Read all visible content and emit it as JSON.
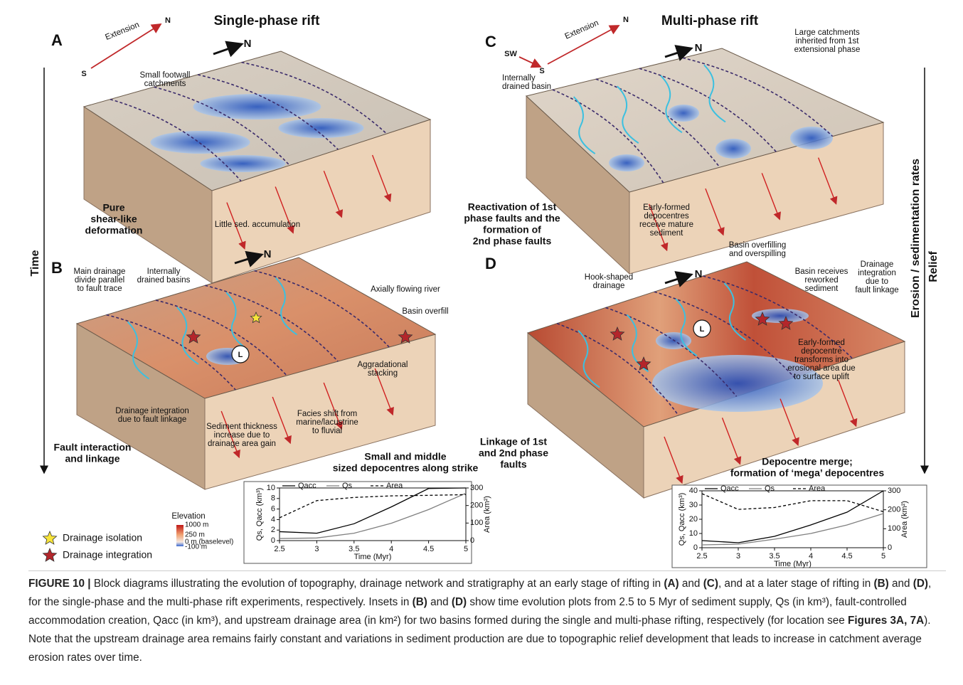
{
  "titles": [
    "Single-phase rift",
    "Multi-phase rift"
  ],
  "panels": [
    {
      "letter": "A",
      "notes": [
        {
          "lines": [
            "Small footwall",
            "catchments"
          ]
        },
        {
          "lines": [
            "N"
          ]
        },
        {
          "lines": [
            "Pure",
            "shear-like",
            "deformation"
          ],
          "bold": true
        },
        {
          "lines": [
            "Little sed. accumulation"
          ]
        },
        {
          "lines": [
            "S"
          ]
        },
        {
          "lines": [
            "N"
          ]
        },
        {
          "lines": [
            "Extension"
          ]
        }
      ]
    },
    {
      "letter": "B",
      "notes": [
        {
          "lines": [
            "Main drainage",
            "divide parallel",
            "to fault trace"
          ]
        },
        {
          "lines": [
            "Internally",
            "drained basins"
          ]
        },
        {
          "lines": [
            "N"
          ]
        },
        {
          "lines": [
            "Axially flowing river"
          ]
        },
        {
          "lines": [
            "Basin overfill"
          ]
        },
        {
          "lines": [
            "L"
          ]
        },
        {
          "lines": [
            "Drainage integration",
            "due to fault linkage"
          ]
        },
        {
          "lines": [
            "Aggradational",
            "stacking"
          ]
        },
        {
          "lines": [
            "Facies shift from",
            "marine/lacustrine",
            "to fluvial"
          ]
        },
        {
          "lines": [
            "Sediment thickness",
            "increase due to",
            "drainage area gain"
          ]
        },
        {
          "lines": [
            "Fault interaction",
            "and linkage"
          ],
          "bold": true
        },
        {
          "lines": [
            "Small and middle",
            "sized depocentres along strike"
          ],
          "bold": true
        }
      ]
    },
    {
      "letter": "C",
      "notes": [
        {
          "lines": [
            "SW"
          ]
        },
        {
          "lines": [
            "S"
          ]
        },
        {
          "lines": [
            "N"
          ]
        },
        {
          "lines": [
            "Extension"
          ]
        },
        {
          "lines": [
            "N"
          ]
        },
        {
          "lines": [
            "Large catchments",
            "inherited from 1st",
            "extensional phase"
          ]
        },
        {
          "lines": [
            "Internally",
            "drained basin"
          ]
        },
        {
          "lines": [
            "Reactivation of 1st",
            "phase faults and the",
            "formation of",
            "2nd phase faults"
          ],
          "bold": true
        },
        {
          "lines": [
            "Early-formed",
            "depocentres",
            "receive mature",
            "sediment"
          ]
        }
      ]
    },
    {
      "letter": "D",
      "notes": [
        {
          "lines": [
            "N"
          ]
        },
        {
          "lines": [
            "Hook-shaped",
            "drainage"
          ]
        },
        {
          "lines": [
            "Basin overfilling",
            "and overspilling"
          ]
        },
        {
          "lines": [
            "Basin receives",
            "reworked",
            "sediment"
          ]
        },
        {
          "lines": [
            "Drainage",
            "integration",
            "due to",
            "fault linkage"
          ]
        },
        {
          "lines": [
            "L"
          ]
        },
        {
          "lines": [
            "Early-formed",
            "depocentre",
            "transforms into",
            "erosional area due",
            "to surface uplift"
          ]
        },
        {
          "lines": [
            "Linkage of 1st",
            "and 2nd phase",
            "faults"
          ],
          "bold": true
        },
        {
          "lines": [
            "Depocentre merge;",
            "formation of ‘mega’ depocentres"
          ],
          "bold": true
        }
      ]
    }
  ],
  "side_labels": {
    "left": "Time",
    "right": [
      "Erosion / sedimentation rates",
      "Relief"
    ]
  },
  "legend": [
    {
      "label": "Drainage isolation",
      "color": "#f7e43a"
    },
    {
      "label": "Drainage integration",
      "color": "#b3262b"
    }
  ],
  "elevation": {
    "title": "Elevation",
    "labels": [
      "1000 m",
      "250 m",
      "0 m (baselevel)",
      "-100 m"
    ]
  },
  "chart_data": [
    {
      "type": "line",
      "x": [
        2.5,
        3,
        3.5,
        4,
        4.5,
        5
      ],
      "xlim": [
        2.5,
        5
      ],
      "xticks": [
        2.5,
        3,
        3.5,
        4,
        4.5,
        5
      ],
      "ylim": [
        0,
        10
      ],
      "yticks": [
        0,
        2,
        4,
        6,
        8,
        10
      ],
      "y2lim": [
        0,
        300
      ],
      "y2ticks": [
        0,
        100,
        200,
        300
      ],
      "xlabel": "Time (Myr)",
      "ylabel": "Qs, Qacc (km³)",
      "y2label": "Area (km²)",
      "series": [
        {
          "name": "Qacc",
          "color": "#000000",
          "values": [
            1.7,
            1.4,
            3.2,
            6.4,
            9.9,
            10.0
          ]
        },
        {
          "name": "Qs",
          "color": "#808080",
          "values": [
            0.4,
            0.5,
            1.4,
            3.3,
            5.9,
            9.0
          ]
        },
        {
          "name": "Area",
          "color": "#000000",
          "dashed": true,
          "axis": "y2",
          "values": [
            130,
            228,
            246,
            255,
            258,
            262
          ]
        }
      ]
    },
    {
      "type": "line",
      "x": [
        2.5,
        3,
        3.5,
        4,
        4.5,
        5
      ],
      "xlim": [
        2.5,
        5
      ],
      "xticks": [
        2.5,
        3,
        3.5,
        4,
        4.5,
        5
      ],
      "ylim": [
        0,
        40
      ],
      "yticks": [
        0,
        10,
        20,
        30,
        40
      ],
      "y2lim": [
        0,
        300
      ],
      "y2ticks": [
        0,
        100,
        200,
        300
      ],
      "xlabel": "Time (Myr)",
      "ylabel": "Qs, Qacc (km³)",
      "y2label": "Area (km²)",
      "series": [
        {
          "name": "Qacc",
          "color": "#000000",
          "values": [
            5,
            3.5,
            8,
            16,
            25,
            40
          ]
        },
        {
          "name": "Qs",
          "color": "#808080",
          "values": [
            2,
            2.5,
            6,
            10,
            16,
            24
          ]
        },
        {
          "name": "Area",
          "color": "#000000",
          "dashed": true,
          "axis": "y2",
          "values": [
            285,
            202,
            212,
            248,
            248,
            190
          ]
        }
      ]
    }
  ],
  "caption": [
    {
      "text": "FIGURE 10 |",
      "bold": true
    },
    {
      "text": " Block diagrams illustrating the evolution of topography, drainage network and stratigraphy at an early stage of rifting in "
    },
    {
      "text": "(A)",
      "bold": true
    },
    {
      "text": " and "
    },
    {
      "text": "(C)",
      "bold": true
    },
    {
      "text": ", and at a later stage of rifting in "
    },
    {
      "text": "(B)",
      "bold": true
    },
    {
      "text": " and "
    },
    {
      "text": "(D)",
      "bold": true
    },
    {
      "text": ", for the single-phase and the multi-phase rift experiments, respectively. Insets in "
    },
    {
      "text": "(B)",
      "bold": true
    },
    {
      "text": " and "
    },
    {
      "text": "(D)",
      "bold": true
    },
    {
      "text": " show time evolution plots from 2.5 to 5 Myr of sediment supply, Qs (in km³), fault-controlled accommodation creation, Qacc (in km³), and upstream drainage area (in km²) for two basins formed during the single and multi-phase rifting, respectively (for location see "
    },
    {
      "text": "Figures 3A, 7A",
      "bold": true
    },
    {
      "text": "). Note that the upstream drainage area remains fairly constant and variations in sediment production are due to topographic relief development that leads to increase in catchment average erosion rates over time."
    }
  ]
}
